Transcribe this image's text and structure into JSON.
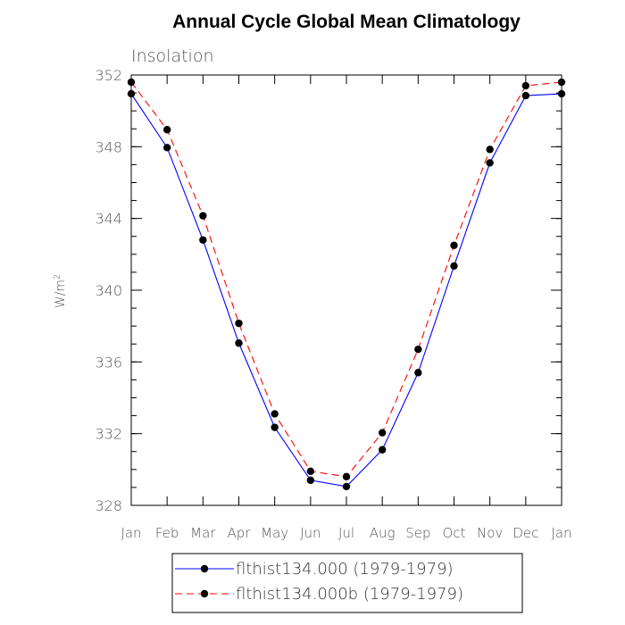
{
  "chart_data": {
    "type": "line",
    "title": "Annual Cycle Global Mean Climatology",
    "panel_label": "Insolation",
    "ylabel": "W/m",
    "ylabel_superscript": "2",
    "xlabel": "",
    "categories": [
      "Jan",
      "Feb",
      "Mar",
      "Apr",
      "May",
      "Jun",
      "Jul",
      "Aug",
      "Sep",
      "Oct",
      "Nov",
      "Dec",
      "Jan"
    ],
    "ylim": [
      328,
      352
    ],
    "yticks": [
      328,
      332,
      336,
      340,
      344,
      348,
      352
    ],
    "y_minor_step": 1,
    "grid": false,
    "legend_position": "bottom",
    "series": [
      {
        "name": "flthist134.000 (1979-1979)",
        "color": "#0000ff",
        "dash": "solid",
        "marker": "filled-circle",
        "values": [
          350.95,
          347.95,
          342.8,
          337.05,
          332.35,
          329.4,
          329.05,
          331.1,
          335.4,
          341.35,
          347.1,
          350.85,
          350.95
        ]
      },
      {
        "name": "flthist134.000b (1979-1979)",
        "color": "#ff0000",
        "dash": "dashed",
        "marker": "filled-circle",
        "values": [
          351.6,
          348.95,
          344.15,
          338.15,
          333.1,
          329.9,
          329.6,
          332.05,
          336.7,
          342.5,
          347.85,
          351.4,
          351.6
        ]
      }
    ]
  }
}
